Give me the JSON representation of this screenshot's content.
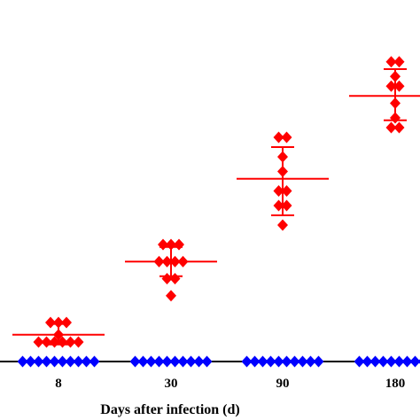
{
  "chart_data": {
    "type": "scatter",
    "categories": [
      "8",
      "30",
      "90",
      "180"
    ],
    "xlabel": "Days after infection (d)",
    "ylabel": "",
    "ylim": [
      0,
      7.6
    ],
    "grid": false,
    "colors": {
      "infected": "#ff0000",
      "control": "#0000ff",
      "axis": "#000000"
    },
    "series": [
      {
        "marker": "diamond",
        "color": "#ff0000",
        "groups": [
          {
            "category": "8",
            "mean": 0.55,
            "sd_low": 0.35,
            "sd_high": 0.77,
            "points": [
              0.8,
              0.8,
              0.8,
              0.55,
              0.4,
              0.4,
              0.4,
              0.4,
              0.4,
              0.4
            ]
          },
          {
            "category": "30",
            "mean": 2.05,
            "sd_low": 1.75,
            "sd_high": 2.35,
            "points": [
              2.4,
              2.4,
              2.4,
              2.05,
              2.05,
              2.05,
              2.05,
              1.7,
              1.7,
              1.35
            ]
          },
          {
            "category": "90",
            "mean": 3.75,
            "sd_low": 3.0,
            "sd_high": 4.4,
            "points": [
              4.6,
              4.6,
              4.2,
              3.9,
              3.5,
              3.5,
              3.2,
              3.2,
              2.8
            ]
          },
          {
            "category": "180",
            "mean": 5.45,
            "sd_low": 4.95,
            "sd_high": 6.0,
            "points": [
              6.15,
              6.15,
              5.85,
              5.65,
              5.65,
              5.3,
              5.0,
              4.8,
              4.8
            ]
          }
        ]
      },
      {
        "marker": "diamond",
        "color": "#0000ff",
        "groups": [
          {
            "category": "8",
            "points": [
              0,
              0,
              0,
              0,
              0,
              0,
              0,
              0,
              0,
              0
            ]
          },
          {
            "category": "30",
            "points": [
              0,
              0,
              0,
              0,
              0,
              0,
              0,
              0,
              0,
              0
            ]
          },
          {
            "category": "90",
            "points": [
              0,
              0,
              0,
              0,
              0,
              0,
              0,
              0,
              0,
              0
            ]
          },
          {
            "category": "180",
            "points": [
              0,
              0,
              0,
              0,
              0,
              0,
              0,
              0,
              0,
              0
            ]
          }
        ]
      }
    ]
  }
}
